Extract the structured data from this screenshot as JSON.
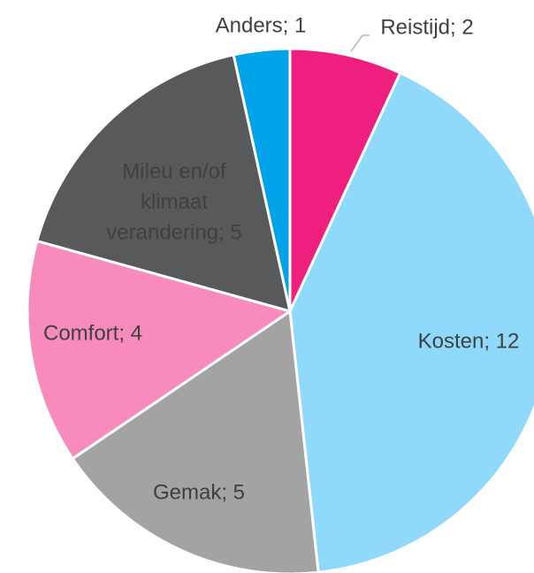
{
  "chart_data": {
    "type": "pie",
    "categories": [
      "Reistijd",
      "Kosten",
      "Gemak",
      "Comfort",
      "Mileu en/of klimaat verandering",
      "Anders"
    ],
    "values": [
      2,
      12,
      5,
      4,
      5,
      1
    ],
    "value_labels": [
      "Reistijd; 2",
      "Kosten; 12",
      "Gemak; 5",
      "Comfort; 4",
      "Mileu en/of klimaat verandering; 5",
      "Anders; 1"
    ],
    "colors": [
      "#ee1f7e",
      "#8fd9fb",
      "#a3a3a3",
      "#f78bbd",
      "#58595b",
      "#00a3e8"
    ]
  }
}
